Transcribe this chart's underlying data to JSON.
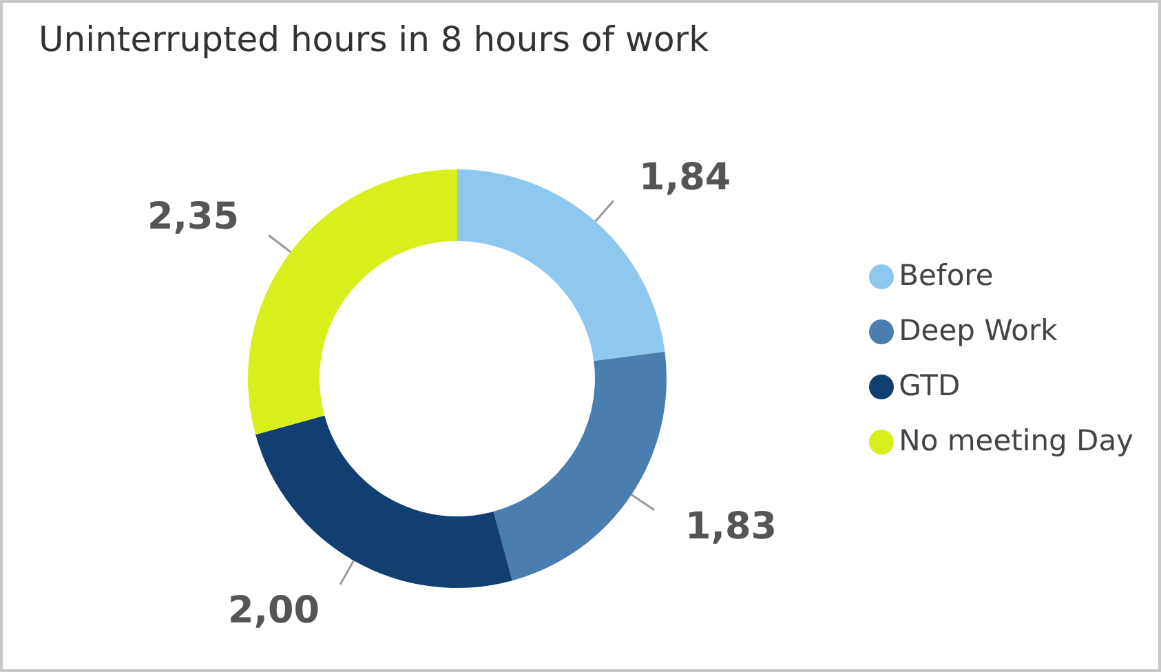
{
  "chart_data": {
    "type": "donut",
    "title": "Uninterrupted hours in 8 hours of work",
    "categories": [
      "Before",
      "Deep Work",
      "GTD",
      "No meeting Day"
    ],
    "values": [
      1.84,
      1.83,
      2.0,
      2.35
    ],
    "value_labels": [
      "1,84",
      "1,83",
      "2,00",
      "2,35"
    ],
    "colors": [
      "#8ec8ef",
      "#4a7eae",
      "#113f72",
      "#d8ef1b"
    ],
    "legend": "right"
  }
}
